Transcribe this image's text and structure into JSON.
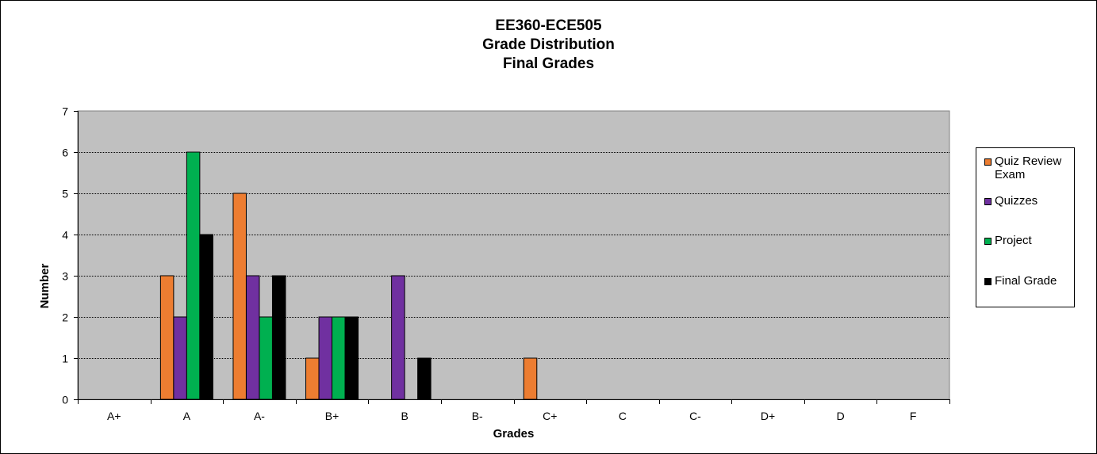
{
  "chart_data": {
    "type": "bar",
    "title": [
      "EE360-ECE505",
      "Grade Distribution",
      "Final Grades"
    ],
    "xlabel": "Grades",
    "ylabel": "Number",
    "ylim": [
      0,
      7
    ],
    "yticks": [
      "0",
      "1",
      "2",
      "3",
      "4",
      "5",
      "6",
      "7"
    ],
    "categories": [
      "A+",
      "A",
      "A-",
      "B+",
      "B",
      "B-",
      "C+",
      "C",
      "C-",
      "D+",
      "D",
      "F"
    ],
    "series": [
      {
        "name": "Quiz Review Exam",
        "color": "#ed7d31",
        "values": [
          0,
          3,
          5,
          1,
          0,
          0,
          1,
          0,
          0,
          0,
          0,
          0
        ]
      },
      {
        "name": "Quizzes",
        "color": "#7030a0",
        "values": [
          0,
          2,
          3,
          2,
          3,
          0,
          0,
          0,
          0,
          0,
          0,
          0
        ]
      },
      {
        "name": "Project",
        "color": "#00b050",
        "values": [
          0,
          6,
          2,
          2,
          0,
          0,
          0,
          0,
          0,
          0,
          0,
          0
        ]
      },
      {
        "name": "Final Grade",
        "color": "#000000",
        "values": [
          0,
          4,
          3,
          2,
          1,
          0,
          0,
          0,
          0,
          0,
          0,
          0
        ]
      }
    ],
    "grid": true,
    "legend_position": "right",
    "plot_background": "#c0c0c0"
  }
}
